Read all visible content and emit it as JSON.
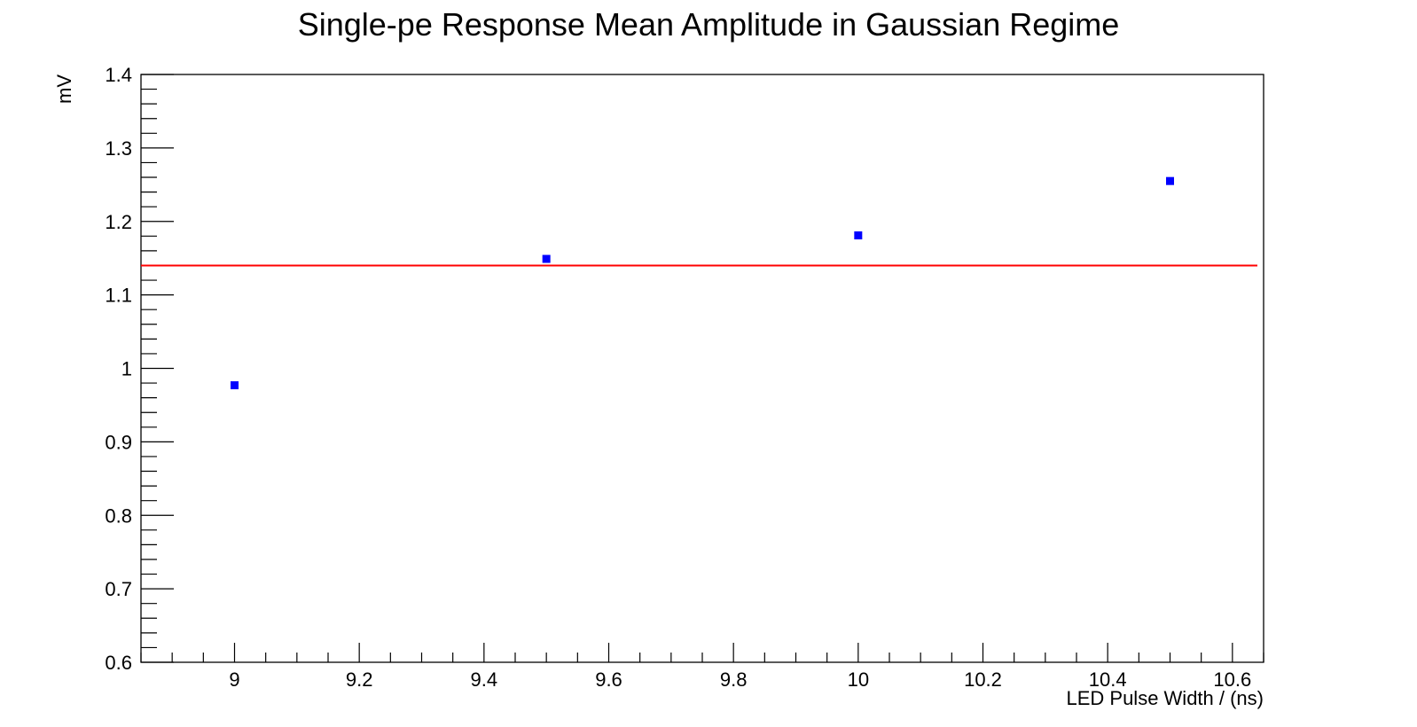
{
  "chart_data": {
    "type": "scatter",
    "title": "Single-pe Response Mean Amplitude in Gaussian Regime",
    "xlabel": "LED Pulse Width / (ns)",
    "ylabel": "mV",
    "xlim": [
      8.85,
      10.65
    ],
    "ylim": [
      0.6,
      1.4
    ],
    "x_ticks": [
      "9",
      "9.2",
      "9.4",
      "9.6",
      "9.8",
      "10",
      "10.2",
      "10.4",
      "10.6"
    ],
    "y_ticks": [
      "0.6",
      "0.7",
      "0.8",
      "0.9",
      "1",
      "1.1",
      "1.2",
      "1.3",
      "1.4"
    ],
    "grid": false,
    "series": [
      {
        "color": "#0000ff",
        "marker": "square",
        "points": [
          {
            "x": 9.0,
            "y": 0.977
          },
          {
            "x": 9.5,
            "y": 1.149
          },
          {
            "x": 10.0,
            "y": 1.181
          },
          {
            "x": 10.5,
            "y": 1.255
          }
        ]
      }
    ],
    "fit_line": {
      "y": 1.14,
      "x_range": [
        8.85,
        10.64
      ],
      "color": "#ff0000"
    }
  }
}
